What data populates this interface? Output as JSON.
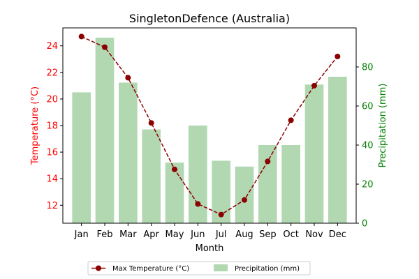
{
  "chart_data": {
    "type": "bar",
    "title": "SingletonDefence (Australia)",
    "xlabel": "Month",
    "categories": [
      "Jan",
      "Feb",
      "Mar",
      "Apr",
      "May",
      "Jun",
      "Jul",
      "Aug",
      "Sep",
      "Oct",
      "Nov",
      "Dec"
    ],
    "series": [
      {
        "name": "Max Temperature (°C)",
        "type": "line",
        "axis": "left",
        "color": "#8b0000",
        "values": [
          24.7,
          23.9,
          21.6,
          18.2,
          14.7,
          12.1,
          11.3,
          12.4,
          15.3,
          18.4,
          21.0,
          23.2
        ]
      },
      {
        "name": "Precipitation (mm)",
        "type": "bar",
        "axis": "right",
        "color": "#b2d8b2",
        "values": [
          67,
          95,
          72,
          48,
          31,
          50,
          32,
          29,
          40,
          40,
          71,
          75
        ]
      }
    ],
    "y_left": {
      "label": "Temperature (°C)",
      "color": "#ff0000",
      "ylim": [
        10.65,
        25.35
      ],
      "ticks": [
        12,
        14,
        16,
        18,
        20,
        22,
        24
      ]
    },
    "y_right": {
      "label": "Precipitation (mm)",
      "color": "#008000",
      "ylim": [
        0,
        100
      ],
      "ticks": [
        0,
        20,
        40,
        60,
        80
      ]
    },
    "legend": {
      "placement": "bottom-center",
      "entries": [
        "Max Temperature (°C)",
        "Precipitation (mm)"
      ]
    }
  }
}
